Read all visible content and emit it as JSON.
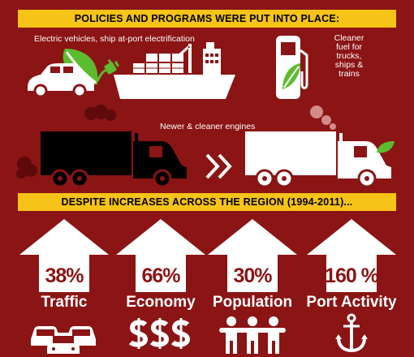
{
  "top_banner": {
    "title": "POLICIES AND PROGRAMS WERE PUT INTO PLACE:"
  },
  "policies": {
    "electric_label": "Electric vehicles, ship at-port electrification",
    "fuel_label_lines": [
      "Cleaner",
      "fuel for",
      "trucks,",
      "ships &",
      "trains"
    ],
    "engines_label": "Newer & cleaner engines"
  },
  "bottom_banner": {
    "title": "DESPITE INCREASES ACROSS THE REGION (1994-2011)..."
  },
  "increases": [
    {
      "percent": "38%",
      "label": "Traffic",
      "icon": "cars-icon"
    },
    {
      "percent": "66%",
      "label": "Economy",
      "icon": "dollar-signs-icon"
    },
    {
      "percent": "30%",
      "label": "Population",
      "icon": "people-icon"
    },
    {
      "percent": "160 %",
      "label": "Port Activity",
      "icon": "anchor-icon"
    }
  ],
  "colors": {
    "background": "#8b1414",
    "banner": "#f6c318",
    "leaf_green": "#5bbd2e",
    "white": "#ffffff"
  }
}
